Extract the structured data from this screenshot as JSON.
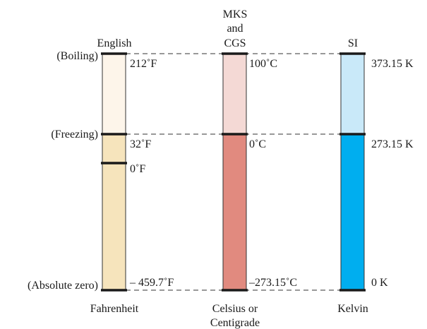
{
  "reference_points": {
    "boiling": "(Boiling)",
    "freezing": "(Freezing)",
    "absolute_zero": "(Absolute zero)"
  },
  "scales": {
    "fahrenheit": {
      "system": "English",
      "name": "Fahrenheit",
      "boiling": "212˚F",
      "freezing": "32˚F",
      "zero": "0˚F",
      "absolute": "– 459.7˚F",
      "color_upper": "#fdf5ea",
      "color_lower": "#f6e4bc"
    },
    "celsius": {
      "system_line1": "MKS",
      "system_line2": "and",
      "system_line3": "CGS",
      "name_line1": "Celsius or",
      "name_line2": "Centigrade",
      "boiling": "100˚C",
      "freezing": "0˚C",
      "absolute": "–273.15˚C",
      "color_upper": "#f4d9d5",
      "color_lower": "#e18a7f"
    },
    "kelvin": {
      "system": "SI",
      "name": "Kelvin",
      "boiling": "373.15 K",
      "freezing": "273.15 K",
      "absolute": "0 K",
      "color_upper": "#c9e9f9",
      "color_lower": "#00aeef"
    }
  }
}
